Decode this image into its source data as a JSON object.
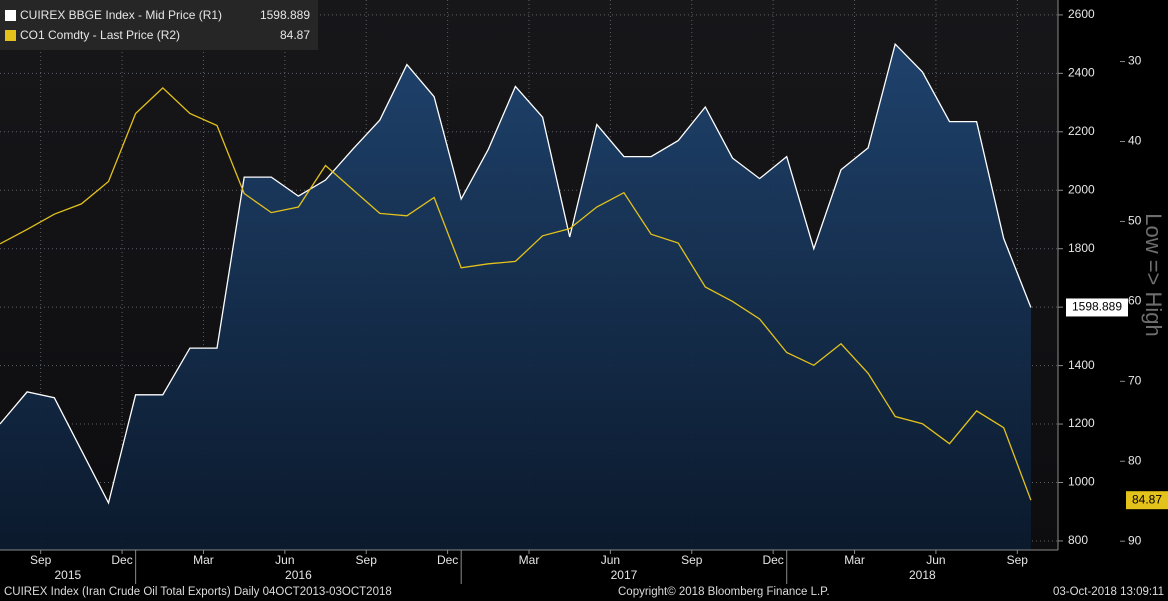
{
  "chart_data": {
    "type": "area_line",
    "legend_position": "top-left",
    "grid": true,
    "x": [
      "2015-08",
      "2015-09",
      "2015-10",
      "2015-11",
      "2015-12",
      "2016-01",
      "2016-02",
      "2016-03",
      "2016-04",
      "2016-05",
      "2016-06",
      "2016-07",
      "2016-08",
      "2016-09",
      "2016-10",
      "2016-11",
      "2016-12",
      "2017-01",
      "2017-02",
      "2017-03",
      "2017-04",
      "2017-05",
      "2017-06",
      "2017-07",
      "2017-08",
      "2017-09",
      "2017-10",
      "2017-11",
      "2017-12",
      "2018-01",
      "2018-02",
      "2018-03",
      "2018-04",
      "2018-05",
      "2018-06",
      "2018-07",
      "2018-08",
      "2018-09",
      "2018-10"
    ],
    "xlim": [
      "2015-08",
      "2018-11"
    ],
    "xticks": [
      {
        "value": "2015-09",
        "label": "Sep"
      },
      {
        "value": "2015-12",
        "label": "Dec"
      },
      {
        "value": "2016-03",
        "label": "Mar"
      },
      {
        "value": "2016-06",
        "label": "Jun"
      },
      {
        "value": "2016-09",
        "label": "Sep"
      },
      {
        "value": "2016-12",
        "label": "Dec"
      },
      {
        "value": "2017-03",
        "label": "Mar"
      },
      {
        "value": "2017-06",
        "label": "Jun"
      },
      {
        "value": "2017-09",
        "label": "Sep"
      },
      {
        "value": "2017-12",
        "label": "Dec"
      },
      {
        "value": "2018-03",
        "label": "Mar"
      },
      {
        "value": "2018-06",
        "label": "Jun"
      },
      {
        "value": "2018-09",
        "label": "Sep"
      }
    ],
    "year_labels": [
      "2015",
      "2016",
      "2017",
      "2018"
    ],
    "ylim": [
      769,
      2651
    ],
    "yticks": [
      800,
      1000,
      1200,
      1400,
      1600,
      1800,
      2000,
      2200,
      2400,
      2600
    ],
    "y2lim": [
      22.3,
      91.1
    ],
    "y2_inverted": true,
    "y2ticks": [
      30,
      40,
      50,
      60,
      70,
      80,
      90
    ],
    "y2_label": "Low => High",
    "series": [
      {
        "name": "CUIREX BBGE Index - Mid Price (R1)",
        "type": "area",
        "color": "#ffffff",
        "fill": "#17345a",
        "axis": "y",
        "values": [
          1200,
          1310,
          1290,
          1110,
          930,
          1300,
          1300,
          1460,
          1460,
          2045,
          2045,
          1980,
          2035,
          2140,
          2240,
          2430,
          2320,
          1970,
          2140,
          2355,
          2250,
          1840,
          2225,
          2115,
          2115,
          2170,
          2285,
          2110,
          2040,
          2115,
          1800,
          2070,
          2145,
          2500,
          2405,
          2235,
          2235,
          1835,
          1598.889
        ]
      },
      {
        "name": "CO1 Comdty - Last Price (R2)",
        "type": "line",
        "color": "#e3c21b",
        "axis": "y2",
        "values": [
          52.8,
          51,
          49.1,
          47.8,
          45,
          36.5,
          33.3,
          36.5,
          38,
          46.5,
          48.9,
          48.2,
          43,
          46,
          49,
          49.3,
          47,
          55.8,
          55.3,
          55,
          51.8,
          50.9,
          48.2,
          46.4,
          51.6,
          52.7,
          58.2,
          60,
          62.2,
          66.4,
          68,
          65.3,
          69,
          74.4,
          75.3,
          77.8,
          73.7,
          75.8,
          84.87
        ]
      }
    ],
    "footer_left": "CUIREX Index (Iran Crude Oil Total Exports)  Daily 04OCT2013-03OCT2018",
    "footer_center": "Copyright© 2018 Bloomberg Finance L.P.",
    "footer_right": "03-Oct-2018 13:09:11"
  }
}
